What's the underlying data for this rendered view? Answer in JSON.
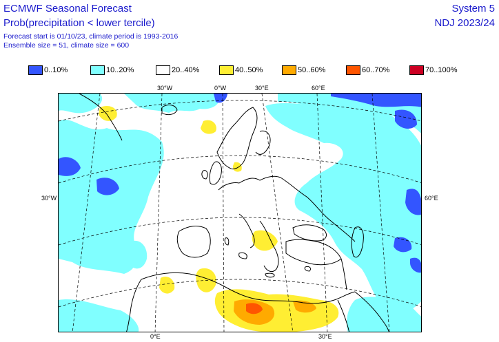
{
  "header": {
    "title": "ECMWF Seasonal Forecast",
    "subtitle": "Prob(precipitation < lower tercile)",
    "info_line1": "Forecast start is 01/10/23, climate period is 1993-2016",
    "info_line2": "Ensemble size = 51, climate size = 600",
    "system": "System 5",
    "period": "NDJ 2023/24"
  },
  "legend": [
    {
      "label": "0..10%",
      "color": "#3355ff"
    },
    {
      "label": "10..20%",
      "color": "#80ffff"
    },
    {
      "label": "20..40%",
      "color": "#ffffff"
    },
    {
      "label": "40..50%",
      "color": "#ffee33"
    },
    {
      "label": "50..60%",
      "color": "#ffaa00"
    },
    {
      "label": "60..70%",
      "color": "#ff5500"
    },
    {
      "label": "70..100%",
      "color": "#cc0022"
    }
  ],
  "map": {
    "top_labels": [
      "30°W",
      "0°W",
      "30°E",
      "60°E"
    ],
    "bottom_labels": [
      "0°E",
      "30°E"
    ],
    "left_label": "30°W",
    "right_label": "60°E"
  }
}
